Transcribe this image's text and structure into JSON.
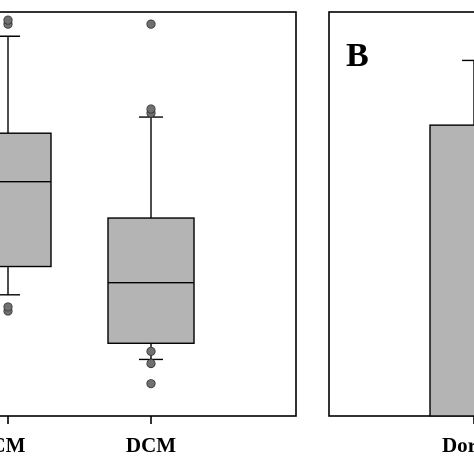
{
  "chart_data": [
    {
      "type": "box",
      "panel_label": "",
      "categories": [
        "CM",
        "DCM"
      ],
      "boxes": [
        {
          "name": "CM",
          "whisker_low": 0.3,
          "q1": 0.37,
          "median": 0.58,
          "q3": 0.7,
          "whisker_high": 0.94,
          "outliers": [
            0.26,
            0.27,
            0.97,
            0.98
          ]
        },
        {
          "name": "DCM",
          "whisker_low": 0.14,
          "q1": 0.18,
          "median": 0.33,
          "q3": 0.49,
          "whisker_high": 0.74,
          "outliers": [
            0.08,
            0.13,
            0.16,
            0.75,
            0.76,
            0.97
          ]
        }
      ],
      "ylim": [
        0,
        1
      ],
      "xlabel": "",
      "ylabel": "",
      "box_color": "#b4b4b4",
      "outlier_color": "#707070",
      "grid": false
    },
    {
      "type": "bar",
      "panel_label": "B",
      "categories": [
        "Dor"
      ],
      "values": [
        0.72
      ],
      "error_high": [
        0.88
      ],
      "ylim": [
        0,
        1
      ],
      "xlabel": "",
      "ylabel": "",
      "bar_color": "#b4b4b4",
      "grid": false
    }
  ]
}
